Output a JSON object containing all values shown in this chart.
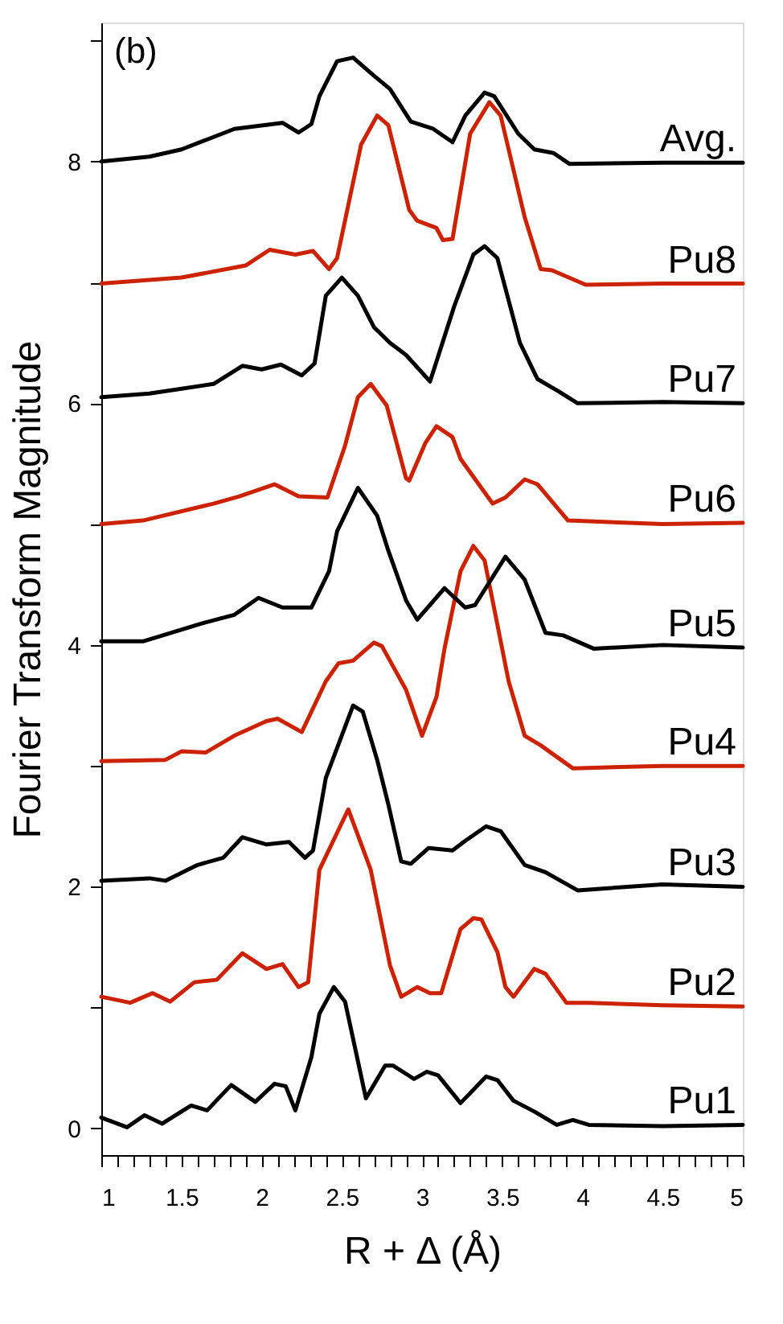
{
  "chart_data": {
    "type": "line",
    "xlabel": "R + Δ (Å)",
    "ylabel": "Fourier Transform Magnitude",
    "annotations": [
      "(b)"
    ],
    "xlim": [
      1,
      5
    ],
    "ylim": [
      -0.22,
      9.15
    ],
    "xticks": [
      1,
      {
        "value": 1.1,
        "label": null
      },
      {
        "value": 1.2,
        "label": null
      },
      {
        "value": 1.3,
        "label": null
      },
      {
        "value": 1.4,
        "label": null
      },
      1.5,
      {
        "value": 1.6,
        "label": null
      },
      {
        "value": 1.7,
        "label": null
      },
      {
        "value": 1.8,
        "label": null
      },
      {
        "value": 1.9,
        "label": null
      },
      2,
      {
        "value": 2.1,
        "label": null
      },
      {
        "value": 2.2,
        "label": null
      },
      {
        "value": 2.3,
        "label": null
      },
      {
        "value": 2.4,
        "label": null
      },
      2.5,
      {
        "value": 2.6,
        "label": null
      },
      {
        "value": 2.7,
        "label": null
      },
      {
        "value": 2.8,
        "label": null
      },
      {
        "value": 2.9,
        "label": null
      },
      3,
      {
        "value": 3.1,
        "label": null
      },
      {
        "value": 3.2,
        "label": null
      },
      {
        "value": 3.3,
        "label": null
      },
      {
        "value": 3.4,
        "label": null
      },
      3.5,
      {
        "value": 3.6,
        "label": null
      },
      {
        "value": 3.7,
        "label": null
      },
      {
        "value": 3.8,
        "label": null
      },
      {
        "value": 3.9,
        "label": null
      },
      4,
      {
        "value": 4.1,
        "label": null
      },
      {
        "value": 4.2,
        "label": null
      },
      {
        "value": 4.3,
        "label": null
      },
      {
        "value": 4.4,
        "label": null
      },
      4.5,
      {
        "value": 4.6,
        "label": null
      },
      {
        "value": 4.7,
        "label": null
      },
      {
        "value": 4.8,
        "label": null
      },
      {
        "value": 4.9,
        "label": null
      },
      5
    ],
    "yticks": [
      0,
      {
        "value": 1,
        "label": null
      },
      2,
      {
        "value": 3,
        "label": null
      },
      4,
      {
        "value": 5,
        "label": null
      },
      6,
      {
        "value": 7,
        "label": null
      },
      8,
      {
        "value": 9,
        "label": null
      }
    ],
    "grid": false,
    "legend": false,
    "marker": "none",
    "line_style": "solid",
    "series": [
      {
        "name": "Pu1",
        "color": "#000000",
        "x": [
          1,
          1.16,
          1.27,
          1.38,
          1.56,
          1.66,
          1.81,
          1.96,
          2.08,
          2.15,
          2.21,
          2.31,
          2.36,
          2.45,
          2.52,
          2.65,
          2.77,
          2.82,
          2.95,
          3.03,
          3.1,
          3.24,
          3.4,
          3.47,
          3.57,
          3.7,
          3.84,
          3.94,
          4.04,
          4.5,
          5
        ],
        "values": [
          0.09,
          0.01,
          0.11,
          0.04,
          0.19,
          0.15,
          0.36,
          0.22,
          0.37,
          0.35,
          0.15,
          0.59,
          0.95,
          1.17,
          1.05,
          0.25,
          0.52,
          0.52,
          0.41,
          0.47,
          0.44,
          0.21,
          0.43,
          0.4,
          0.23,
          0.14,
          0.03,
          0.07,
          0.03,
          0.02,
          0.03
        ]
      },
      {
        "name": "Pu2",
        "color": "#cc2200",
        "x": [
          1,
          1.18,
          1.32,
          1.43,
          1.58,
          1.72,
          1.88,
          2.03,
          2.13,
          2.23,
          2.29,
          2.36,
          2.54,
          2.63,
          2.68,
          2.8,
          2.87,
          2.97,
          3.05,
          3.12,
          3.24,
          3.32,
          3.37,
          3.47,
          3.52,
          3.57,
          3.7,
          3.77,
          3.9,
          4.04,
          4.5,
          5
        ],
        "values": [
          1.09,
          1.04,
          1.12,
          1.05,
          1.21,
          1.23,
          1.45,
          1.32,
          1.36,
          1.17,
          1.21,
          2.14,
          2.64,
          2.32,
          2.14,
          1.35,
          1.09,
          1.17,
          1.12,
          1.12,
          1.65,
          1.74,
          1.73,
          1.46,
          1.17,
          1.09,
          1.32,
          1.28,
          1.04,
          1.04,
          1.02,
          1.01
        ]
      },
      {
        "name": "Pu3",
        "color": "#000000",
        "x": [
          1,
          1.3,
          1.4,
          1.6,
          1.76,
          1.88,
          2.03,
          2.17,
          2.27,
          2.32,
          2.4,
          2.57,
          2.63,
          2.72,
          2.79,
          2.87,
          2.93,
          3.04,
          3.19,
          3.27,
          3.4,
          3.49,
          3.64,
          3.77,
          3.97,
          4.5,
          5
        ],
        "values": [
          2.05,
          2.07,
          2.05,
          2.18,
          2.24,
          2.41,
          2.35,
          2.37,
          2.24,
          2.3,
          2.9,
          3.5,
          3.45,
          3.05,
          2.68,
          2.21,
          2.19,
          2.32,
          2.3,
          2.38,
          2.5,
          2.46,
          2.18,
          2.12,
          1.97,
          2.02,
          2.0
        ]
      },
      {
        "name": "Pu4",
        "color": "#cc2200",
        "x": [
          1,
          1.4,
          1.5,
          1.65,
          1.83,
          2.03,
          2.1,
          2.25,
          2.4,
          2.48,
          2.57,
          2.7,
          2.75,
          2.9,
          3.0,
          3.09,
          3.14,
          3.24,
          3.32,
          3.39,
          3.54,
          3.64,
          3.74,
          3.94,
          4.5,
          5
        ],
        "values": [
          3.04,
          3.05,
          3.12,
          3.11,
          3.25,
          3.37,
          3.39,
          3.28,
          3.7,
          3.85,
          3.87,
          4.02,
          3.99,
          3.63,
          3.25,
          3.57,
          3.97,
          4.61,
          4.82,
          4.7,
          3.7,
          3.25,
          3.17,
          2.98,
          3.0,
          3.0
        ]
      },
      {
        "name": "Pu5",
        "color": "#000000",
        "x": [
          1,
          1.26,
          1.63,
          1.83,
          1.98,
          2.13,
          2.31,
          2.42,
          2.47,
          2.6,
          2.72,
          2.79,
          2.9,
          2.97,
          3.14,
          3.27,
          3.33,
          3.52,
          3.64,
          3.77,
          3.88,
          4.07,
          4.5,
          5
        ],
        "values": [
          4.03,
          4.03,
          4.18,
          4.25,
          4.39,
          4.31,
          4.31,
          4.61,
          4.94,
          5.3,
          5.07,
          4.78,
          4.37,
          4.21,
          4.47,
          4.31,
          4.33,
          4.73,
          4.54,
          4.1,
          4.08,
          3.97,
          4.0,
          3.98
        ]
      },
      {
        "name": "Pu6",
        "color": "#cc2200",
        "x": [
          1,
          1.26,
          1.7,
          1.86,
          2.08,
          2.23,
          2.41,
          2.52,
          2.6,
          2.68,
          2.78,
          2.9,
          2.92,
          3.02,
          3.09,
          3.19,
          3.24,
          3.44,
          3.52,
          3.64,
          3.72,
          3.91,
          4.5,
          5
        ],
        "values": [
          5.0,
          5.03,
          5.17,
          5.23,
          5.33,
          5.23,
          5.22,
          5.65,
          6.05,
          6.16,
          5.98,
          5.38,
          5.36,
          5.67,
          5.81,
          5.72,
          5.54,
          5.17,
          5.22,
          5.37,
          5.33,
          5.03,
          5.0,
          5.01
        ]
      },
      {
        "name": "Pu7",
        "color": "#000000",
        "x": [
          1,
          1.3,
          1.7,
          1.88,
          2.0,
          2.12,
          2.25,
          2.33,
          2.4,
          2.5,
          2.6,
          2.7,
          2.8,
          2.9,
          3.05,
          3.2,
          3.32,
          3.39,
          3.47,
          3.61,
          3.72,
          3.85,
          3.97,
          4.5,
          5
        ],
        "values": [
          6.05,
          6.08,
          6.16,
          6.31,
          6.28,
          6.32,
          6.23,
          6.33,
          6.89,
          7.04,
          6.89,
          6.63,
          6.5,
          6.4,
          6.18,
          6.8,
          7.23,
          7.3,
          7.2,
          6.5,
          6.2,
          6.1,
          6.0,
          6.01,
          6.0
        ]
      },
      {
        "name": "Pu8",
        "color": "#cc2200",
        "x": [
          1,
          1.5,
          1.9,
          2.05,
          2.21,
          2.32,
          2.42,
          2.47,
          2.62,
          2.72,
          2.79,
          2.92,
          2.97,
          3.09,
          3.13,
          3.19,
          3.3,
          3.42,
          3.49,
          3.64,
          3.74,
          3.81,
          4.02,
          4.5,
          5
        ],
        "values": [
          6.99,
          7.04,
          7.14,
          7.27,
          7.23,
          7.26,
          7.11,
          7.2,
          8.14,
          8.38,
          8.3,
          7.6,
          7.51,
          7.45,
          7.35,
          7.36,
          8.23,
          8.49,
          8.38,
          7.54,
          7.11,
          7.1,
          6.98,
          6.99,
          6.99
        ]
      },
      {
        "name": "Avg.",
        "color": "#000000",
        "x": [
          1,
          1.3,
          1.5,
          1.83,
          2.13,
          2.23,
          2.31,
          2.36,
          2.47,
          2.57,
          2.7,
          2.8,
          2.93,
          3.07,
          3.19,
          3.27,
          3.39,
          3.45,
          3.6,
          3.7,
          3.82,
          3.92,
          4.5,
          5
        ],
        "values": [
          8.0,
          8.04,
          8.1,
          8.27,
          8.32,
          8.24,
          8.31,
          8.54,
          8.83,
          8.86,
          8.71,
          8.6,
          8.33,
          8.27,
          8.16,
          8.38,
          8.57,
          8.54,
          8.23,
          8.1,
          8.07,
          7.98,
          7.99,
          7.99
        ]
      }
    ]
  }
}
